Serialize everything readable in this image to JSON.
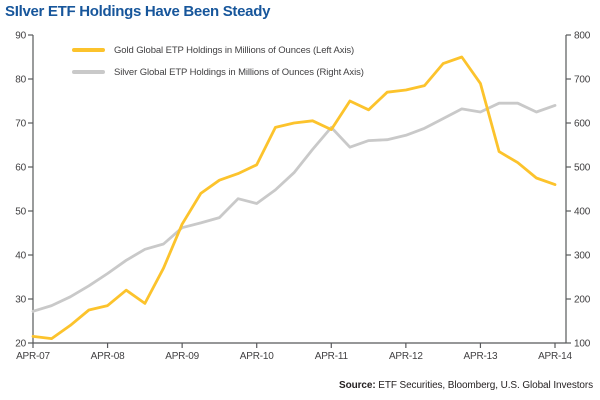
{
  "title": "SIlver ETF Holdings Have Been Steady",
  "title_color": "#17569b",
  "legend": [
    {
      "label": "Gold Global ETP Holdings in Millions of Ounces (Left Axis)"
    },
    {
      "label": "Silver Global ETP Holdings in Millions of Ounces (Right Axis)"
    }
  ],
  "source": {
    "prefix": "Source:",
    "text": "ETF Securities, Bloomberg, U.S. Global Investors"
  },
  "chart_data": {
    "type": "line",
    "title": "SIlver ETF Holdings Have Been Steady",
    "x_unit": "quarterly samples, months since APR-07",
    "x_tick_labels": [
      "APR-07",
      "APR-08",
      "APR-09",
      "APR-10",
      "APR-11",
      "APR-12",
      "APR-13",
      "APR-14"
    ],
    "x_tick_months": [
      0,
      12,
      24,
      36,
      48,
      60,
      72,
      84
    ],
    "months": [
      0,
      3,
      6,
      9,
      12,
      15,
      18,
      21,
      24,
      27,
      30,
      33,
      36,
      39,
      42,
      45,
      48,
      51,
      54,
      57,
      60,
      63,
      66,
      69,
      72,
      75,
      78,
      81,
      84
    ],
    "left_axis": {
      "min": 20,
      "max": 90,
      "step": 10
    },
    "right_axis": {
      "min": 100,
      "max": 800,
      "step": 100
    },
    "grid": false,
    "legend_position": "top-left",
    "axis_color": "#58595b",
    "tick_label_color": "#414042",
    "series": [
      {
        "name": "Gold Global ETP Holdings in Millions of Ounces (Left Axis)",
        "axis": "left",
        "color": "#FCC32C",
        "values": [
          21.5,
          21,
          24,
          27.5,
          28.5,
          32,
          29,
          37,
          47,
          54,
          57,
          58.5,
          60.5,
          69,
          70,
          70.5,
          68.5,
          75,
          73,
          77,
          77.5,
          78.5,
          83.5,
          85,
          79,
          63.5,
          61,
          57.5,
          56
        ]
      },
      {
        "name": "Silver Global ETP Holdings in Millions of Ounces (Right Axis)",
        "axis": "right",
        "color": "#C9C9C9",
        "values": [
          172,
          185,
          205,
          230,
          258,
          288,
          313,
          325,
          362,
          373,
          385,
          428,
          417,
          448,
          487,
          540,
          590,
          545,
          560,
          562,
          572,
          588,
          610,
          632,
          625,
          645,
          645,
          625,
          640
        ]
      }
    ]
  }
}
